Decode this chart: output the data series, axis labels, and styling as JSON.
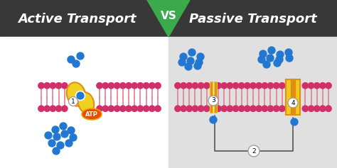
{
  "bg_left": "#ffffff",
  "bg_right": "#e0e0e0",
  "header_bg": "#383838",
  "header_left_text": "Active Transport",
  "header_right_text": "Passive Transport",
  "vs_text": "VS",
  "vs_bg": "#3aaa4a",
  "membrane_color": "#d0306a",
  "tail_color": "#e08090",
  "protein1_color": "#f0d020",
  "protein1_outline": "#e09010",
  "atp_color": "#e05000",
  "atp_outline": "#f0a000",
  "atp_text": "ATP",
  "blue_dot_color": "#2278d0",
  "label_bg": "#ffffff",
  "label_color": "#333333",
  "label1": "1",
  "label2": "2",
  "label3": "3",
  "label4": "4",
  "protein3_color": "#f0c820",
  "protein3_stripe": "#e09010",
  "protein4_color": "#f0c820",
  "protein4_stripe": "#e09010",
  "bracket_color": "#555555",
  "figsize": [
    4.74,
    2.37
  ],
  "dpi": 100
}
